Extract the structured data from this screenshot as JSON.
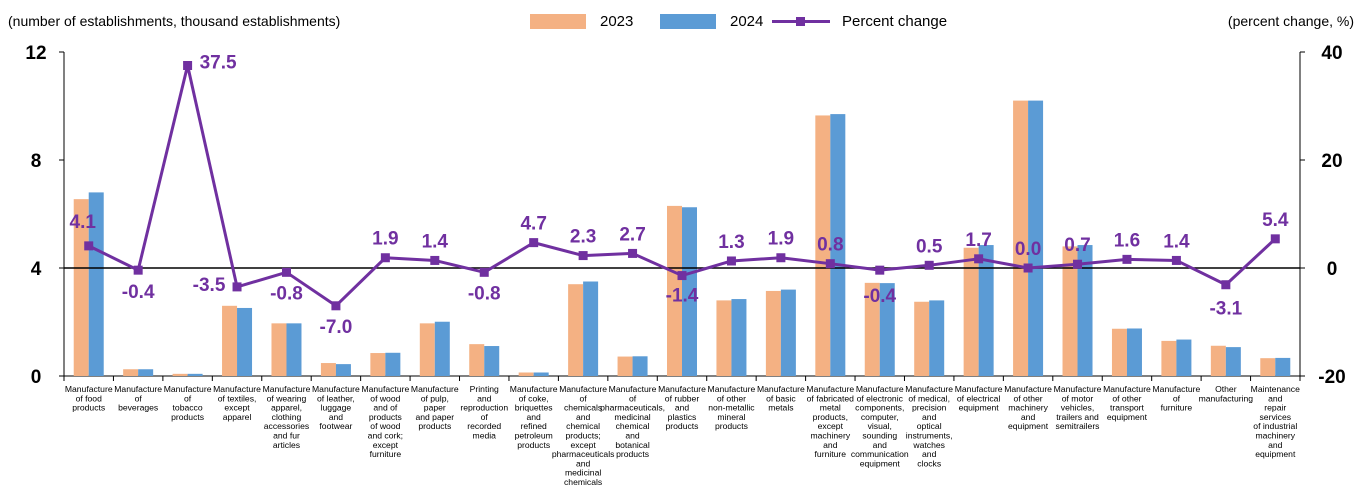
{
  "header": {
    "left_unit": "(number of establishments, thousand establishments)",
    "right_unit": "(percent change, %)"
  },
  "colors": {
    "y2023": "#f4b183",
    "y2024": "#5b9bd5",
    "line": "#7030a0"
  },
  "chart_data": {
    "type": "bar",
    "categories": [
      "Manufacture of food products",
      "Manufacture of beverages",
      "Manufacture of tobacco products",
      "Manufacture of textiles, except apparel",
      "Manufacture of wearing apparel, clothing accessories and fur articles",
      "Manufacture of leather, luggage and footwear",
      "Manufacture of wood and of products of wood and cork; except furniture",
      "Manufacture of pulp, paper and paper products",
      "Printing and reproduction of recorded media",
      "Manufacture of coke, briquettes and refined petroleum products",
      "Manufacture of chemicals and chemical products; except pharmaceuticals and medicinal chemicals",
      "Manufacture of pharmaceuticals, medicinal chemical and botanical products",
      "Manufacture of rubber and plastics products",
      "Manufacture of other non-metallic mineral products",
      "Manufacture of basic metals",
      "Manufacture of fabricated metal products, except machinery and furniture",
      "Manufacture of electronic components, computer, visual, sounding and communication equipment",
      "Manufacture of medical, precision and optical instruments, watches and clocks",
      "Manufacture of electrical equipment",
      "Manufacture of other machinery and equipment",
      "Manufacture of motor vehicles, trailers and semitrailers",
      "Manufacture of other transport equipment",
      "Manufacture of furniture",
      "Other manufacturing",
      "Maintenance and repair services of industrial machinery and equipment"
    ],
    "category_lines": [
      [
        "Manufacture",
        "of food",
        "products"
      ],
      [
        "Manufacture",
        "of",
        "beverages"
      ],
      [
        "Manufacture",
        "of",
        "tobacco",
        "products"
      ],
      [
        "Manufacture",
        "of textiles,",
        "except",
        "apparel"
      ],
      [
        "Manufacture",
        "of wearing",
        "apparel,",
        "clothing",
        "accessories",
        "and fur",
        "articles"
      ],
      [
        "Manufacture",
        "of leather,",
        "luggage",
        "and",
        "footwear"
      ],
      [
        "Manufacture",
        "of wood",
        "and of",
        "products",
        "of wood",
        "and cork;",
        "except",
        "furniture"
      ],
      [
        "Manufacture",
        "of pulp,",
        "paper",
        "and paper",
        "products"
      ],
      [
        "Printing",
        "and",
        "reproduction",
        "of",
        "recorded",
        "media"
      ],
      [
        "Manufacture",
        "of coke,",
        "briquettes",
        "and",
        "refined",
        "petroleum",
        "products"
      ],
      [
        "Manufacture",
        "of",
        "chemicals",
        "and",
        "chemical",
        "products;",
        "except",
        "pharmaceuticals",
        "and",
        "medicinal",
        "chemicals"
      ],
      [
        "Manufacture",
        "of",
        "pharmaceuticals,",
        "medicinal",
        "chemical",
        "and",
        "botanical",
        "products"
      ],
      [
        "Manufacture",
        "of rubber",
        "and",
        "plastics",
        "products"
      ],
      [
        "Manufacture",
        "of other",
        "non-metallic",
        "mineral",
        "products"
      ],
      [
        "Manufacture",
        "of basic",
        "metals"
      ],
      [
        "Manufacture",
        "of fabricated",
        "metal",
        "products,",
        "except",
        "machinery",
        "and",
        "furniture"
      ],
      [
        "Manufacture",
        "of electronic",
        "components,",
        "computer,",
        "visual,",
        "sounding",
        "and",
        "communication",
        "equipment"
      ],
      [
        "Manufacture",
        "of medical,",
        "precision",
        "and",
        "optical",
        "instruments,",
        "watches",
        "and",
        "clocks"
      ],
      [
        "Manufacture",
        "of electrical",
        "equipment"
      ],
      [
        "Manufacture",
        "of other",
        "machinery",
        "and",
        "equipment"
      ],
      [
        "Manufacture",
        "of motor",
        "vehicles,",
        "trailers and",
        "semitrailers"
      ],
      [
        "Manufacture",
        "of other",
        "transport",
        "equipment"
      ],
      [
        "Manufacture",
        "of",
        "furniture"
      ],
      [
        "Other",
        "manufacturing"
      ],
      [
        "Maintenance",
        "and",
        "repair",
        "services",
        "of industrial",
        "machinery",
        "and",
        "equipment"
      ]
    ],
    "series": [
      {
        "name": "2023",
        "values": [
          6.55,
          0.25,
          0.08,
          2.6,
          1.95,
          0.48,
          0.85,
          1.95,
          1.18,
          0.13,
          3.4,
          0.72,
          6.3,
          2.8,
          3.15,
          9.65,
          3.45,
          2.75,
          4.75,
          10.2,
          4.8,
          1.75,
          1.3,
          1.12,
          0.66
        ]
      },
      {
        "name": "2024",
        "values": [
          6.8,
          0.25,
          0.08,
          2.52,
          1.95,
          0.44,
          0.86,
          2.01,
          1.11,
          0.13,
          3.5,
          0.73,
          6.25,
          2.85,
          3.2,
          9.7,
          3.44,
          2.8,
          4.85,
          10.2,
          4.85,
          1.76,
          1.35,
          1.07,
          0.67
        ]
      }
    ],
    "line_series": {
      "name": "Percent change",
      "values": [
        4.1,
        -0.4,
        37.5,
        -3.5,
        -0.8,
        -7.0,
        1.9,
        1.4,
        -0.8,
        4.7,
        2.3,
        2.7,
        -1.4,
        1.3,
        1.9,
        0.8,
        -0.4,
        0.5,
        1.7,
        0.0,
        0.7,
        1.6,
        1.4,
        -3.1,
        5.4
      ],
      "labels": [
        "4.1",
        "-0.4",
        "37.5",
        "-3.5",
        "-0.8",
        "-7.0",
        "1.9",
        "1.4",
        "-0.8",
        "4.7",
        "2.3",
        "2.7",
        "-1.4",
        "1.3",
        "1.9",
        "0.8",
        "-0.4",
        "0.5",
        "1.7",
        "0.0",
        "0.7",
        "1.6",
        "1.4",
        "-3.1",
        "5.4"
      ]
    },
    "y_left": {
      "range": [
        0,
        12
      ],
      "ticks": [
        0,
        4,
        8,
        12
      ],
      "tick_labels": [
        "0",
        "4",
        "8",
        "12"
      ]
    },
    "y_right": {
      "range": [
        -20,
        40
      ],
      "ticks": [
        -20,
        0,
        20,
        40
      ],
      "tick_labels": [
        "-20",
        "0",
        "20",
        "40"
      ]
    },
    "legend_placement": "top-center",
    "grid": false
  }
}
